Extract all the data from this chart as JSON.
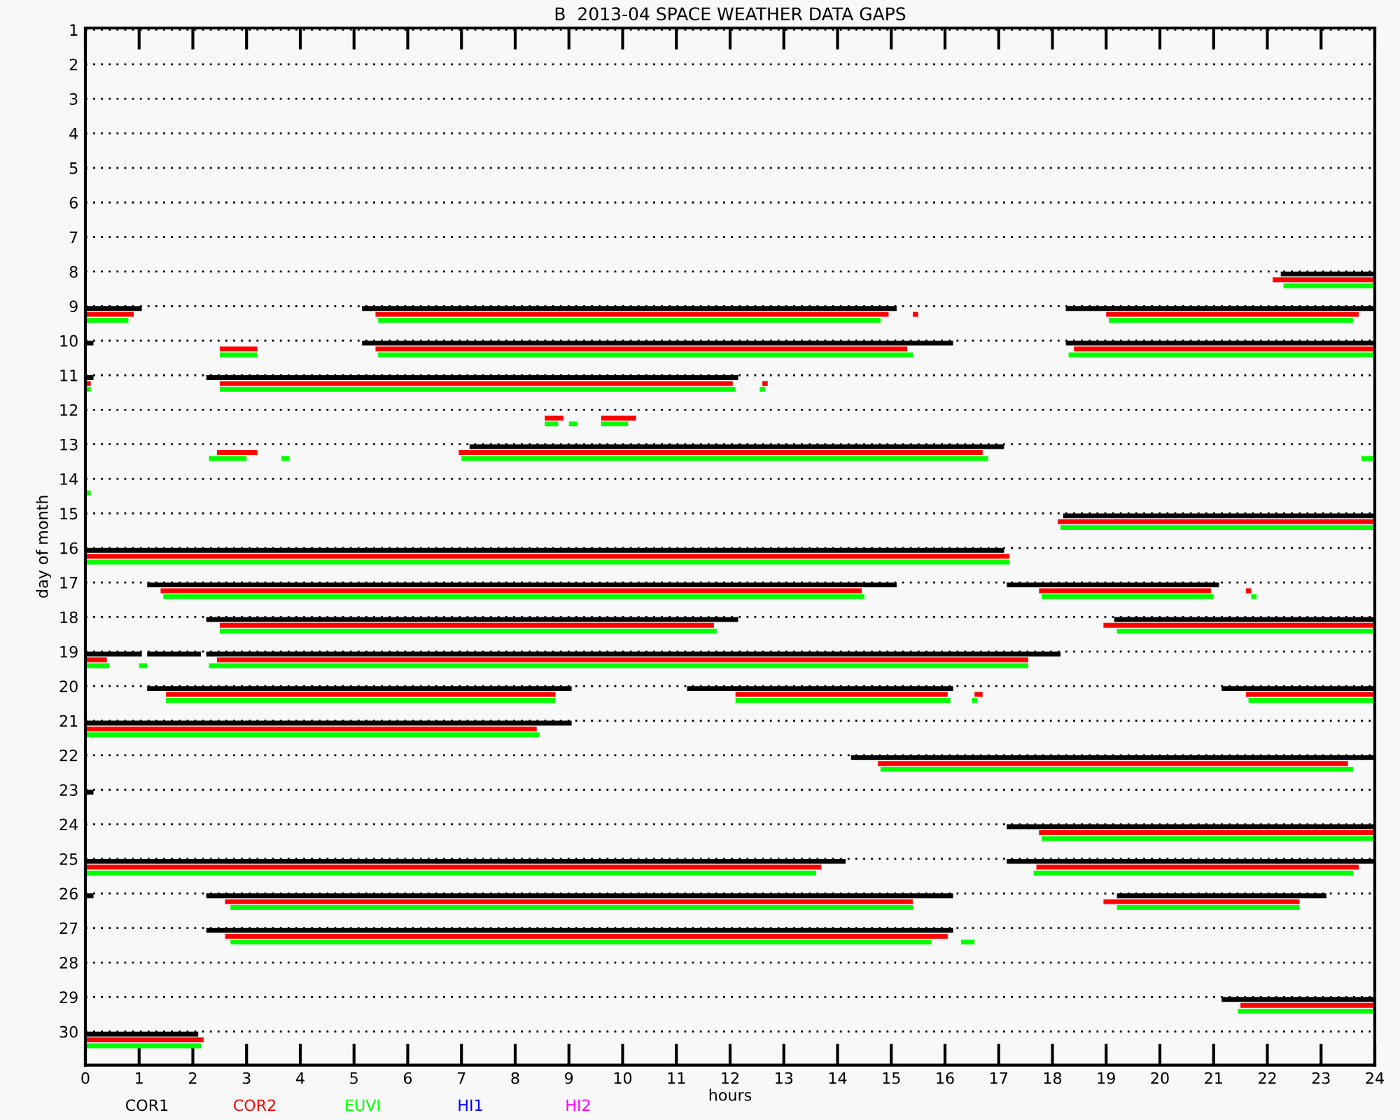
{
  "chart_data": {
    "type": "bar",
    "orientation": "horizontal",
    "title": "B  2013-04 SPACE WEATHER DATA GAPS",
    "xlabel": "hours",
    "ylabel": "day of month",
    "categories": [
      "1",
      "2",
      "3",
      "4",
      "5",
      "6",
      "7",
      "8",
      "9",
      "10",
      "11",
      "12",
      "13",
      "14",
      "15",
      "16",
      "17",
      "18",
      "19",
      "20",
      "21",
      "22",
      "23",
      "24",
      "25",
      "26",
      "27",
      "28",
      "29",
      "30"
    ],
    "xlim": [
      0,
      24
    ],
    "xticks": [
      0,
      1,
      2,
      3,
      4,
      5,
      6,
      7,
      8,
      9,
      10,
      11,
      12,
      13,
      14,
      15,
      16,
      17,
      18,
      19,
      20,
      21,
      22,
      23,
      24
    ],
    "grid": "y",
    "legend": "bottom left",
    "series": [
      {
        "name": "COR1",
        "color": "#000000",
        "base": [
          null,
          null,
          null,
          null,
          null,
          null,
          null,
          22.25,
          0,
          0,
          0,
          null,
          7.15,
          null,
          18.2,
          0,
          1.15,
          2.25,
          0,
          1.15,
          0,
          14.25,
          0,
          17.15,
          0,
          0,
          2.25,
          null,
          21.15,
          0
        ],
        "values": [
          null,
          null,
          null,
          null,
          null,
          null,
          null,
          1.75,
          1.05,
          0.15,
          0.15,
          null,
          9.95,
          null,
          5.8,
          17.1,
          13.95,
          9.9,
          1.05,
          7.9,
          9.05,
          9.75,
          0.15,
          6.85,
          14.15,
          0.15,
          13.9,
          null,
          2.85,
          2.1
        ]
      },
      {
        "name": "COR2",
        "color": "#ff0000",
        "base": [
          null,
          null,
          null,
          null,
          null,
          null,
          null,
          22.1,
          0,
          2.5,
          0,
          8.55,
          2.45,
          null,
          18.1,
          0,
          1.4,
          2.5,
          0,
          1.5,
          0,
          14.75,
          null,
          17.75,
          0,
          2.6,
          2.6,
          null,
          21.5,
          0
        ],
        "values": [
          null,
          null,
          null,
          null,
          null,
          null,
          null,
          1.9,
          0.9,
          0.7,
          0.1,
          0.35,
          0.75,
          null,
          5.9,
          17.2,
          13.05,
          9.2,
          0.4,
          7.25,
          8.4,
          8.75,
          null,
          6.25,
          13.7,
          12.8,
          13.45,
          null,
          2.5,
          2.2
        ]
      },
      {
        "name": "EUVI",
        "color": "#00ff00",
        "base": [
          null,
          null,
          null,
          null,
          null,
          null,
          null,
          22.3,
          0,
          2.5,
          0,
          8.55,
          2.3,
          0,
          18.15,
          0,
          1.45,
          2.5,
          0,
          1.5,
          0,
          14.8,
          null,
          17.8,
          0,
          2.7,
          2.7,
          null,
          21.45,
          0
        ],
        "values": [
          null,
          null,
          null,
          null,
          null,
          null,
          null,
          1.7,
          0.8,
          0.7,
          0.1,
          0.25,
          0.7,
          0.1,
          5.85,
          17.2,
          13.05,
          9.25,
          0.45,
          7.25,
          8.45,
          8.8,
          null,
          6.2,
          13.6,
          12.7,
          13.05,
          null,
          2.55,
          2.15
        ]
      },
      {
        "name": "HI1",
        "color": "#0000ff",
        "base": [
          null,
          null,
          null,
          null,
          null,
          null,
          null,
          null,
          null,
          null,
          null,
          null,
          null,
          null,
          null,
          null,
          null,
          null,
          null,
          null,
          null,
          null,
          null,
          null,
          null,
          null,
          null,
          null,
          null,
          null
        ],
        "values": [
          null,
          null,
          null,
          null,
          null,
          null,
          null,
          null,
          null,
          null,
          null,
          null,
          null,
          null,
          null,
          null,
          null,
          null,
          null,
          null,
          null,
          null,
          null,
          null,
          null,
          null,
          null,
          null,
          null,
          null
        ]
      },
      {
        "name": "HI2",
        "color": "#ff00ff",
        "base": [
          null,
          null,
          null,
          null,
          null,
          null,
          null,
          null,
          null,
          null,
          null,
          null,
          null,
          null,
          null,
          null,
          null,
          null,
          null,
          null,
          null,
          null,
          null,
          null,
          null,
          null,
          null,
          null,
          null,
          null
        ],
        "values": [
          null,
          null,
          null,
          null,
          null,
          null,
          null,
          null,
          null,
          null,
          null,
          null,
          null,
          null,
          null,
          null,
          null,
          null,
          null,
          null,
          null,
          null,
          null,
          null,
          null,
          null,
          null,
          null,
          null,
          null
        ]
      },
      {
        "color": "#000000",
        "base": [
          null,
          null,
          null,
          null,
          null,
          null,
          null,
          null,
          5.15,
          5.15,
          2.25,
          null,
          null,
          null,
          null,
          null,
          17.15,
          19.15,
          1.15,
          11.2,
          null,
          null,
          null,
          null,
          17.15,
          2.25,
          null,
          null,
          null,
          null
        ],
        "values": [
          null,
          null,
          null,
          null,
          null,
          null,
          null,
          null,
          9.95,
          11.0,
          9.9,
          null,
          null,
          null,
          null,
          null,
          3.95,
          4.85,
          1.0,
          4.95,
          null,
          null,
          null,
          null,
          6.85,
          13.9,
          null,
          null,
          null,
          null
        ]
      },
      {
        "color": "#000000",
        "base": [
          null,
          null,
          null,
          null,
          null,
          null,
          null,
          null,
          18.25,
          18.25,
          null,
          null,
          null,
          null,
          null,
          null,
          null,
          null,
          2.25,
          21.15,
          null,
          null,
          null,
          null,
          null,
          19.2,
          null,
          null,
          null,
          null
        ],
        "values": [
          null,
          null,
          null,
          null,
          null,
          null,
          null,
          null,
          5.75,
          5.75,
          null,
          null,
          null,
          null,
          null,
          null,
          null,
          null,
          15.9,
          2.85,
          null,
          null,
          null,
          null,
          null,
          3.9,
          null,
          null,
          null,
          null
        ]
      },
      {
        "color": "#ff0000",
        "base": [
          null,
          null,
          null,
          null,
          null,
          null,
          null,
          null,
          5.4,
          5.4,
          2.5,
          9.6,
          6.95,
          null,
          null,
          null,
          17.75,
          18.95,
          2.45,
          12.1,
          null,
          null,
          null,
          null,
          17.7,
          18.95,
          null,
          null,
          null,
          null
        ],
        "values": [
          null,
          null,
          null,
          null,
          null,
          null,
          null,
          null,
          9.55,
          9.9,
          9.55,
          0.65,
          9.75,
          null,
          null,
          null,
          3.2,
          5.05,
          15.1,
          3.95,
          null,
          null,
          null,
          null,
          6.0,
          3.65,
          null,
          null,
          null,
          null
        ]
      },
      {
        "color": "#ff0000",
        "base": [
          null,
          null,
          null,
          null,
          null,
          null,
          null,
          null,
          15.4,
          18.4,
          12.6,
          null,
          null,
          null,
          null,
          null,
          21.6,
          null,
          null,
          16.55,
          null,
          null,
          null,
          null,
          null,
          null,
          null,
          null,
          null,
          null
        ],
        "values": [
          null,
          null,
          null,
          null,
          null,
          null,
          null,
          null,
          0.1,
          5.6,
          0.1,
          null,
          null,
          null,
          null,
          null,
          0.1,
          null,
          null,
          0.15,
          null,
          null,
          null,
          null,
          null,
          null,
          null,
          null,
          null,
          null
        ]
      },
      {
        "color": "#ff0000",
        "base": [
          null,
          null,
          null,
          null,
          null,
          null,
          null,
          null,
          19.0,
          null,
          null,
          null,
          null,
          null,
          null,
          null,
          null,
          null,
          null,
          21.6,
          null,
          null,
          null,
          null,
          null,
          null,
          null,
          null,
          null,
          null
        ],
        "values": [
          null,
          null,
          null,
          null,
          null,
          null,
          null,
          null,
          4.7,
          null,
          null,
          null,
          null,
          null,
          null,
          null,
          null,
          null,
          null,
          2.4,
          null,
          null,
          null,
          null,
          null,
          null,
          null,
          null,
          null,
          null
        ]
      },
      {
        "color": "#00ff00",
        "base": [
          null,
          null,
          null,
          null,
          null,
          null,
          null,
          null,
          5.45,
          5.45,
          2.5,
          9.0,
          3.65,
          null,
          null,
          null,
          17.8,
          19.2,
          1.0,
          12.1,
          null,
          null,
          null,
          null,
          17.65,
          19.2,
          16.3,
          null,
          null,
          null
        ],
        "values": [
          null,
          null,
          null,
          null,
          null,
          null,
          null,
          null,
          9.35,
          9.95,
          9.6,
          0.15,
          0.15,
          null,
          null,
          null,
          3.2,
          4.8,
          0.15,
          4.0,
          null,
          null,
          null,
          null,
          5.95,
          3.4,
          0.25,
          null,
          null,
          null
        ]
      },
      {
        "color": "#00ff00",
        "base": [
          null,
          null,
          null,
          null,
          null,
          null,
          null,
          null,
          19.05,
          18.3,
          12.55,
          9.6,
          7.0,
          null,
          null,
          null,
          21.7,
          null,
          2.3,
          16.5,
          null,
          null,
          null,
          null,
          null,
          null,
          null,
          null,
          null,
          null
        ],
        "values": [
          null,
          null,
          null,
          null,
          null,
          null,
          null,
          null,
          4.55,
          5.7,
          0.1,
          0.5,
          9.8,
          null,
          null,
          null,
          0.1,
          null,
          15.25,
          0.1,
          null,
          null,
          null,
          null,
          null,
          null,
          null,
          null,
          null,
          null
        ]
      },
      {
        "color": "#00ff00",
        "base": [
          null,
          null,
          null,
          null,
          null,
          null,
          null,
          null,
          null,
          null,
          null,
          null,
          23.75,
          null,
          null,
          null,
          null,
          null,
          null,
          21.65,
          null,
          null,
          null,
          null,
          null,
          null,
          null,
          null,
          null,
          null
        ],
        "values": [
          null,
          null,
          null,
          null,
          null,
          null,
          null,
          null,
          null,
          null,
          null,
          null,
          0.25,
          null,
          null,
          null,
          null,
          null,
          null,
          2.35,
          null,
          null,
          null,
          null,
          null,
          null,
          null,
          null,
          null,
          null
        ]
      }
    ]
  }
}
